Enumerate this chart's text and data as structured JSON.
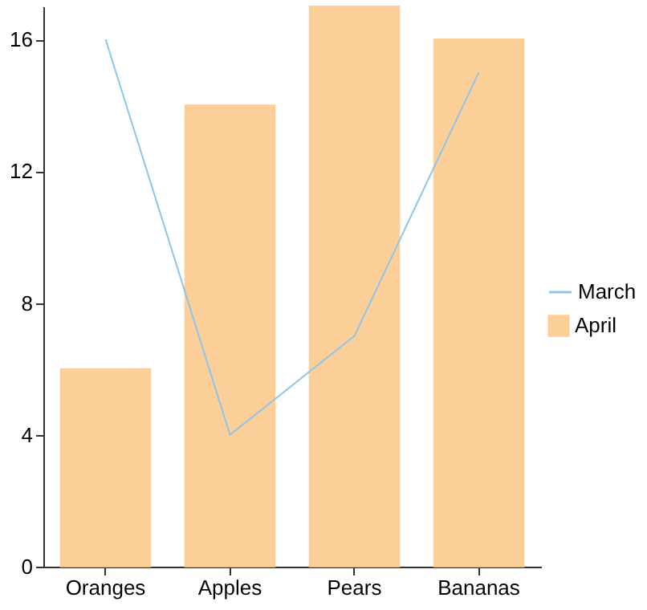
{
  "chart_data": {
    "type": "bar",
    "categories": [
      "Oranges",
      "Apples",
      "Pears",
      "Bananas"
    ],
    "series": [
      {
        "name": "March",
        "type": "line",
        "color": "#8ec5ea",
        "values": [
          16,
          4,
          7,
          15
        ]
      },
      {
        "name": "April",
        "color": "#fcc687",
        "values": [
          6,
          14,
          17,
          16
        ]
      }
    ],
    "ylim": [
      0,
      17
    ],
    "yticks": [
      0,
      4,
      8,
      12,
      16
    ],
    "grid": false,
    "legend": "right",
    "marker": "none"
  }
}
